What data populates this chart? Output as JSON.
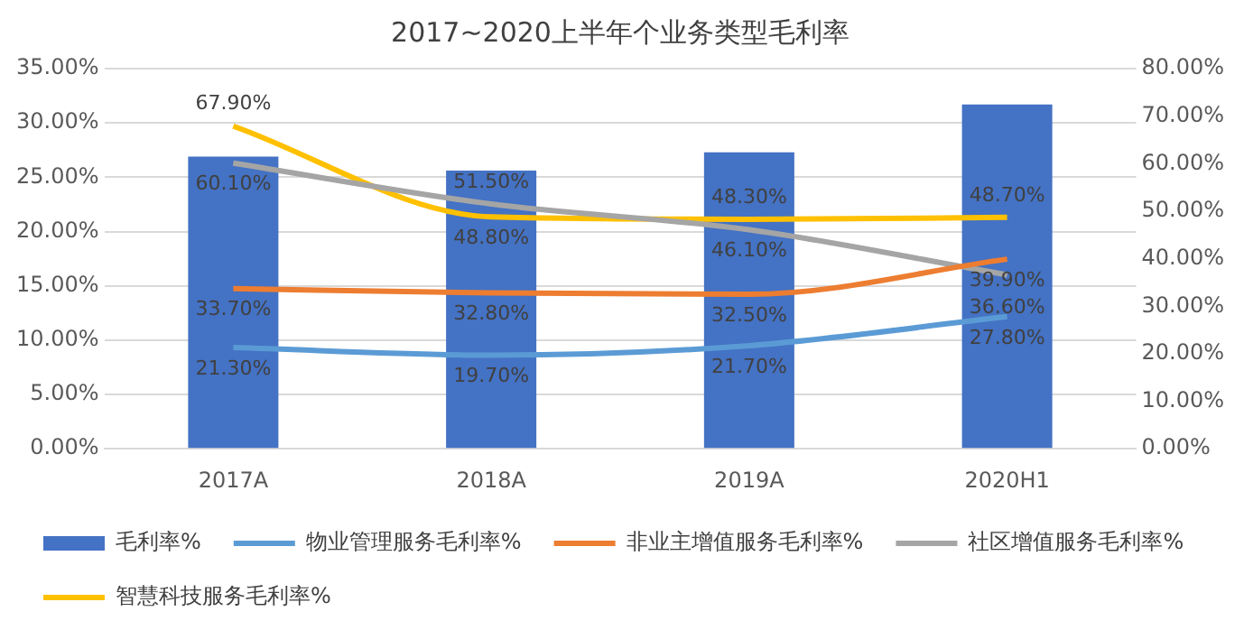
{
  "chart_data": {
    "type": "bar",
    "title": "2017~2020上半年个业务类型毛利率",
    "categories": [
      "2017A",
      "2018A",
      "2019A",
      "2020H1"
    ],
    "series": [
      {
        "name": "毛利率%",
        "color": "#4472c4",
        "values": [
          26.9,
          25.6,
          27.3,
          31.7
        ]
      },
      {
        "name": "物业管理服务毛利率%",
        "type": "line",
        "axis": "y2",
        "color": "#5b9bd5",
        "values": [
          21.3,
          19.7,
          21.7,
          27.8
        ],
        "value_labels": [
          "21.30%",
          "19.70%",
          "21.70%",
          "27.80%"
        ]
      },
      {
        "name": "非业主增值服务毛利率%",
        "type": "line",
        "axis": "y2",
        "color": "#ed7d31",
        "values": [
          33.7,
          32.8,
          32.5,
          39.9
        ],
        "value_labels": [
          "33.70%",
          "32.80%",
          "32.50%",
          "39.90%"
        ]
      },
      {
        "name": "社区增值服务毛利率%",
        "type": "line",
        "axis": "y2",
        "color": "#a5a5a5",
        "values": [
          60.1,
          51.5,
          46.1,
          36.6
        ],
        "value_labels": [
          "60.10%",
          "51.50%",
          "46.10%",
          "36.60%"
        ]
      },
      {
        "name": "智慧科技服务毛利率%",
        "type": "line",
        "axis": "y2",
        "color": "#ffc000",
        "values": [
          67.9,
          48.8,
          48.3,
          48.7
        ],
        "value_labels": [
          "67.90%",
          "48.80%",
          "48.30%",
          "48.70%"
        ]
      }
    ],
    "ylim": [
      0,
      35
    ],
    "yticks": [
      {
        "value": 0,
        "label": "0.00%"
      },
      {
        "value": 5,
        "label": "5.00%"
      },
      {
        "value": 10,
        "label": "10.00%"
      },
      {
        "value": 15,
        "label": "15.00%"
      },
      {
        "value": 20,
        "label": "20.00%"
      },
      {
        "value": 25,
        "label": "25.00%"
      },
      {
        "value": 30,
        "label": "30.00%"
      },
      {
        "value": 35,
        "label": "35.00%"
      }
    ],
    "y2lim": [
      0,
      80
    ],
    "y2ticks": [
      {
        "value": 0,
        "label": "0.00%"
      },
      {
        "value": 10,
        "label": "10.00%"
      },
      {
        "value": 20,
        "label": "20.00%"
      },
      {
        "value": 30,
        "label": "30.00%"
      },
      {
        "value": 40,
        "label": "40.00%"
      },
      {
        "value": 50,
        "label": "50.00%"
      },
      {
        "value": 60,
        "label": "60.00%"
      },
      {
        "value": 70,
        "label": "70.00%"
      },
      {
        "value": 80,
        "label": "80.00%"
      }
    ],
    "grid": "y",
    "legend": "bottom"
  }
}
